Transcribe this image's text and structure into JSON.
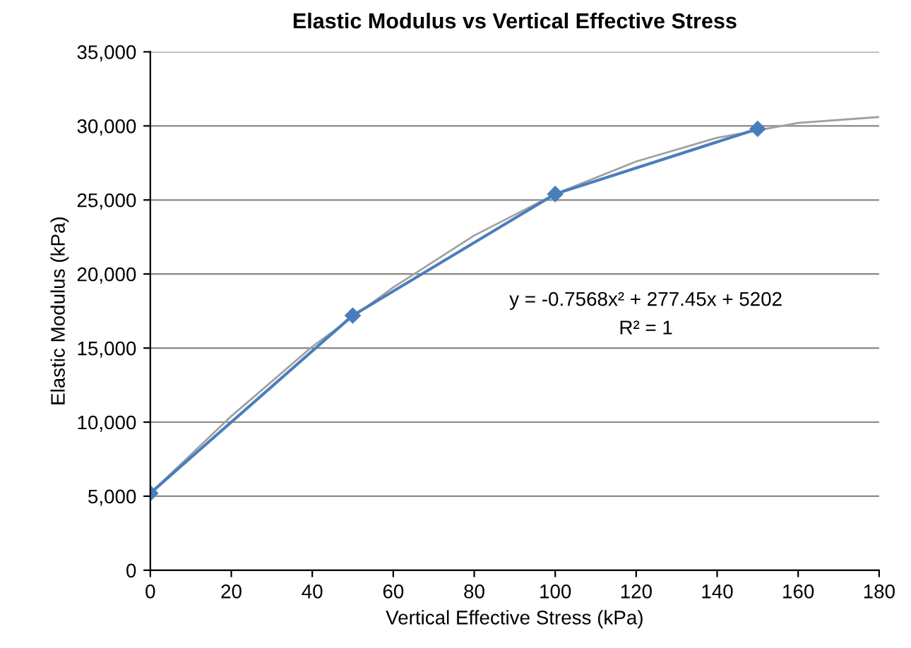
{
  "chart_data": {
    "type": "line",
    "title": "Elastic Modulus vs Vertical Effective Stress",
    "xlabel": "Vertical Effective Stress (kPa)",
    "ylabel": "Elastic Modulus (kPa)",
    "annotations": [
      "y = -0.7568x² + 277.45x + 5202",
      "R² = 1"
    ],
    "series": [
      {
        "color": "#a0a0a0",
        "marker": "none",
        "x": [
          0,
          20,
          40,
          60,
          80,
          100,
          120,
          140,
          160,
          180
        ],
        "values": [
          5200,
          10400,
          15100,
          19100,
          22600,
          25400,
          27600,
          29200,
          30200,
          30600
        ]
      },
      {
        "color": "#4a7ebb",
        "marker": "diamond",
        "x": [
          0,
          50,
          100,
          150
        ],
        "values": [
          5200,
          17200,
          25400,
          29800
        ]
      }
    ],
    "xlim": [
      0,
      180
    ],
    "xticks": [
      0,
      20,
      40,
      60,
      80,
      100,
      120,
      140,
      160,
      180
    ],
    "ylim": [
      0,
      35000
    ],
    "yticks": [
      0,
      {
        "value": 5000,
        "label": "5,000"
      },
      {
        "value": 10000,
        "label": "10,000"
      },
      {
        "value": 15000,
        "label": "15,000"
      },
      {
        "value": 20000,
        "label": "20,000"
      },
      {
        "value": 25000,
        "label": "25,000"
      },
      {
        "value": 30000,
        "label": "30,000"
      },
      {
        "value": 35000,
        "label": "35,000"
      }
    ],
    "grid": "y",
    "line_style": "solid"
  }
}
